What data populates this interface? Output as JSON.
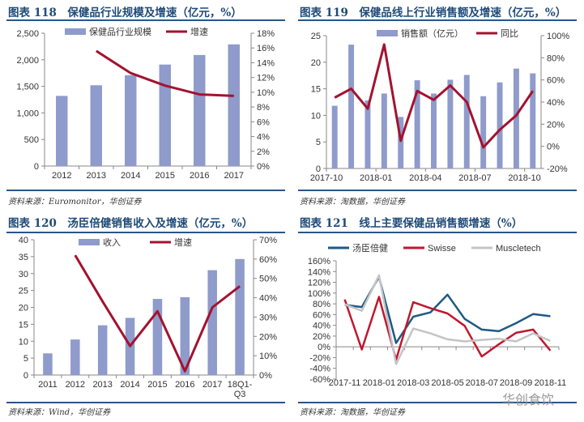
{
  "chart_data": [
    {
      "type": "bar+line",
      "title": "图表 118　保健品行业规模及增速（亿元，%）",
      "source": "资料来源：Euromonitor，华创证券",
      "categories": [
        "2012",
        "2013",
        "2014",
        "2015",
        "2016",
        "2017"
      ],
      "left_axis": {
        "ylim": [
          0,
          2500
        ],
        "ticks": [
          0,
          500,
          1000,
          1500,
          2000,
          2500
        ],
        "tick_labels": [
          "0",
          "500",
          "1,000",
          "1,500",
          "2,000",
          "2,500"
        ]
      },
      "right_axis": {
        "ylim": [
          0,
          18
        ],
        "ticks": [
          0,
          2,
          4,
          6,
          8,
          10,
          12,
          14,
          16,
          18
        ],
        "tick_labels": [
          "0%",
          "2%",
          "4%",
          "6%",
          "8%",
          "10%",
          "12%",
          "14%",
          "16%",
          "18%"
        ]
      },
      "series": [
        {
          "name": "保健品行业规模",
          "kind": "bar",
          "axis": "left",
          "color": "#8e9bcb",
          "values": [
            1320,
            1520,
            1710,
            1910,
            2090,
            2290
          ]
        },
        {
          "name": "增速",
          "kind": "line",
          "axis": "right",
          "color": "#a3122f",
          "values": [
            null,
            15.6,
            12.6,
            10.9,
            9.7,
            9.5
          ]
        }
      ]
    },
    {
      "type": "bar+line",
      "title": "图表 119　保健品线上行业销售额及增速（亿元，%）",
      "source": "资料来源：淘数据，华创证券",
      "categories": [
        "2017-10",
        "2017-11",
        "2017-12",
        "2018-01",
        "2018-02",
        "2018-03",
        "2018-04",
        "2018-05",
        "2018-06",
        "2018-07",
        "2018-08",
        "2018-09",
        "2018-10"
      ],
      "x_tick_labels": [
        "2017-10",
        "",
        "",
        "2018-01",
        "",
        "",
        "2018-04",
        "",
        "",
        "2018-07",
        "",
        "",
        "2018-10"
      ],
      "left_axis": {
        "ylim": [
          0,
          25
        ],
        "ticks": [
          0,
          5,
          10,
          15,
          20,
          25
        ],
        "tick_labels": [
          "0",
          "5",
          "10",
          "15",
          "20",
          "25"
        ]
      },
      "right_axis": {
        "ylim": [
          -20,
          100
        ],
        "ticks": [
          -20,
          0,
          20,
          40,
          60,
          80,
          100
        ],
        "tick_labels": [
          "-20%",
          "0%",
          "20%",
          "40%",
          "60%",
          "80%",
          "100%"
        ]
      },
      "series": [
        {
          "name": "销售额（亿元）",
          "kind": "bar",
          "axis": "left",
          "color": "#8e9bcb",
          "values": [
            11.8,
            23.3,
            12.8,
            14.1,
            9.7,
            16.6,
            14.1,
            16.7,
            17.6,
            13.6,
            16.2,
            18.8,
            17.9
          ]
        },
        {
          "name": "同比",
          "kind": "line",
          "axis": "right",
          "color": "#a3122f",
          "values": [
            44,
            52,
            34,
            92,
            5,
            50,
            42,
            55,
            40,
            -1,
            15,
            28,
            50
          ]
        }
      ]
    },
    {
      "type": "bar+line",
      "title": "图表 120　汤臣倍健销售收入及增速（亿元，%）",
      "source": "资料来源：Wind，华创证券",
      "categories": [
        "2011",
        "2012",
        "2013",
        "2014",
        "2015",
        "2016",
        "2017",
        "18Q1-\nQ3"
      ],
      "left_axis": {
        "ylim": [
          0,
          40
        ],
        "ticks": [
          0,
          5,
          10,
          15,
          20,
          25,
          30,
          35,
          40
        ],
        "tick_labels": [
          "0",
          "5",
          "10",
          "15",
          "20",
          "25",
          "30",
          "35",
          "40"
        ]
      },
      "right_axis": {
        "ylim": [
          0,
          70
        ],
        "ticks": [
          0,
          10,
          20,
          30,
          40,
          50,
          60,
          70
        ],
        "tick_labels": [
          "0%",
          "10%",
          "20%",
          "30%",
          "40%",
          "50%",
          "60%",
          "70%"
        ]
      },
      "series": [
        {
          "name": "收入",
          "kind": "bar",
          "axis": "left",
          "color": "#8e9bcb",
          "values": [
            6.4,
            10.5,
            14.7,
            16.9,
            22.5,
            23.0,
            31.0,
            34.3
          ]
        },
        {
          "name": "增速",
          "kind": "line",
          "axis": "right",
          "color": "#a3122f",
          "values": [
            null,
            62,
            38,
            15,
            33,
            2,
            35,
            46
          ]
        }
      ]
    },
    {
      "type": "line",
      "title": "图表 121　线上主要保健品销售额增速（%）",
      "source": "资料来源：淘数据，华创证券",
      "categories": [
        "2017-11",
        "2017-12",
        "2018-01",
        "2018-02",
        "2018-03",
        "2018-04",
        "2018-05",
        "2018-06",
        "2018-07",
        "2018-08",
        "2018-09",
        "2018-10",
        "2018-11"
      ],
      "x_tick_labels": [
        "2017-11",
        "",
        "2018-01",
        "",
        "2018-03",
        "",
        "2018-05",
        "",
        "2018-07",
        "",
        "2018-09",
        "",
        "2018-11"
      ],
      "left_axis": {
        "ylim": [
          -60,
          160
        ],
        "ticks": [
          -60,
          -40,
          -20,
          0,
          20,
          40,
          60,
          80,
          100,
          120,
          140,
          160
        ],
        "tick_labels": [
          "-60%",
          "-40%",
          "-20%",
          "0%",
          "20%",
          "40%",
          "60%",
          "80%",
          "100%",
          "120%",
          "140%",
          "160%"
        ]
      },
      "series": [
        {
          "name": "汤臣倍健",
          "kind": "line",
          "axis": "left",
          "color": "#1d5a86",
          "values": [
            78,
            74,
            130,
            7,
            56,
            64,
            97,
            52,
            32,
            29,
            44,
            61,
            57
          ]
        },
        {
          "name": "Swisse",
          "kind": "line",
          "axis": "left",
          "color": "#c0172f",
          "values": [
            88,
            -5,
            93,
            -24,
            83,
            72,
            62,
            39,
            -18,
            5,
            26,
            32,
            -7
          ]
        },
        {
          "name": "Muscletech",
          "kind": "line",
          "axis": "left",
          "color": "#c4c4c4",
          "values": [
            79,
            67,
            133,
            -32,
            34,
            25,
            14,
            10,
            13,
            15,
            10,
            25,
            11
          ]
        }
      ]
    }
  ],
  "watermark": "华创食饮"
}
